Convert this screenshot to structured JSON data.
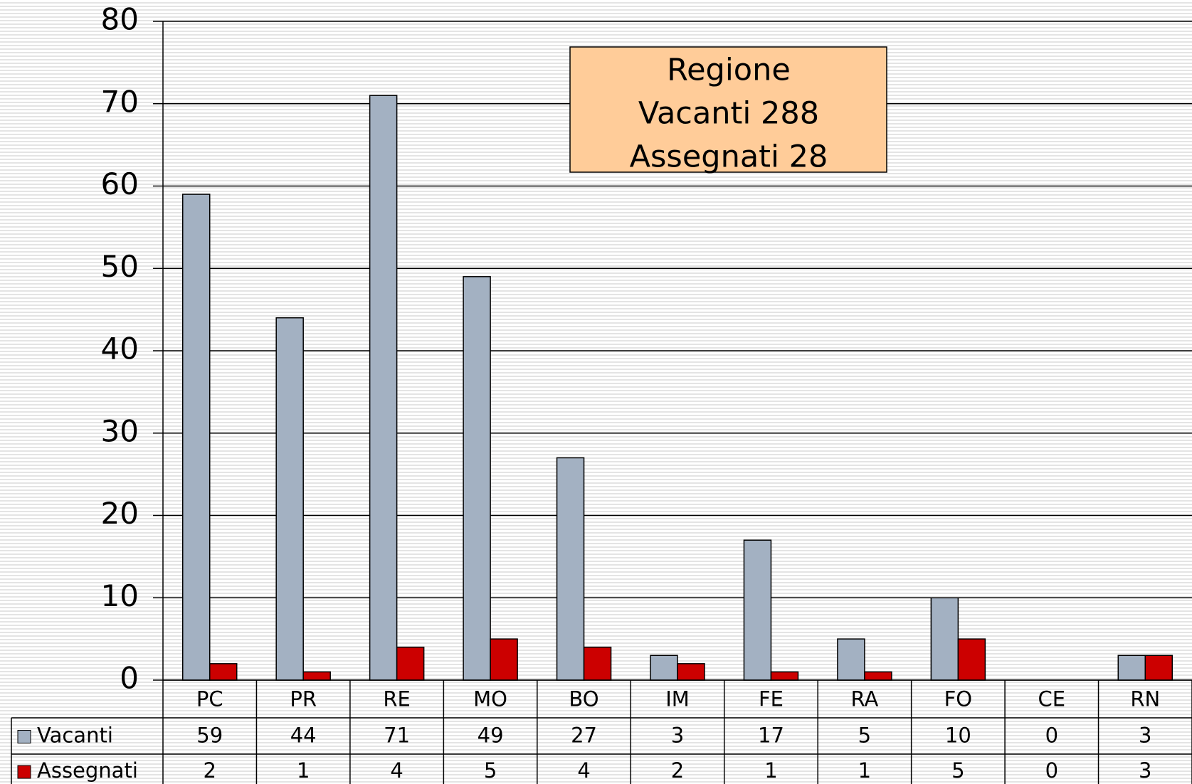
{
  "chart_data": {
    "type": "bar",
    "annotation": [
      "Regione",
      "Vacanti 288",
      "Assegnati 28"
    ],
    "categories": [
      "PC",
      "PR",
      "RE",
      "MO",
      "BO",
      "IM",
      "FE",
      "RA",
      "FO",
      "CE",
      "RN"
    ],
    "series": [
      {
        "name": "Vacanti",
        "color": "#a3b1c2",
        "values": [
          59,
          44,
          71,
          49,
          27,
          3,
          17,
          5,
          10,
          0,
          3
        ]
      },
      {
        "name": "Assegnati",
        "color": "#cc0000",
        "values": [
          2,
          1,
          4,
          5,
          4,
          2,
          1,
          1,
          5,
          0,
          3
        ]
      }
    ],
    "ylim": [
      0,
      80
    ],
    "yticks": [
      0,
      10,
      20,
      30,
      40,
      50,
      60,
      70,
      80
    ],
    "grid": true
  }
}
